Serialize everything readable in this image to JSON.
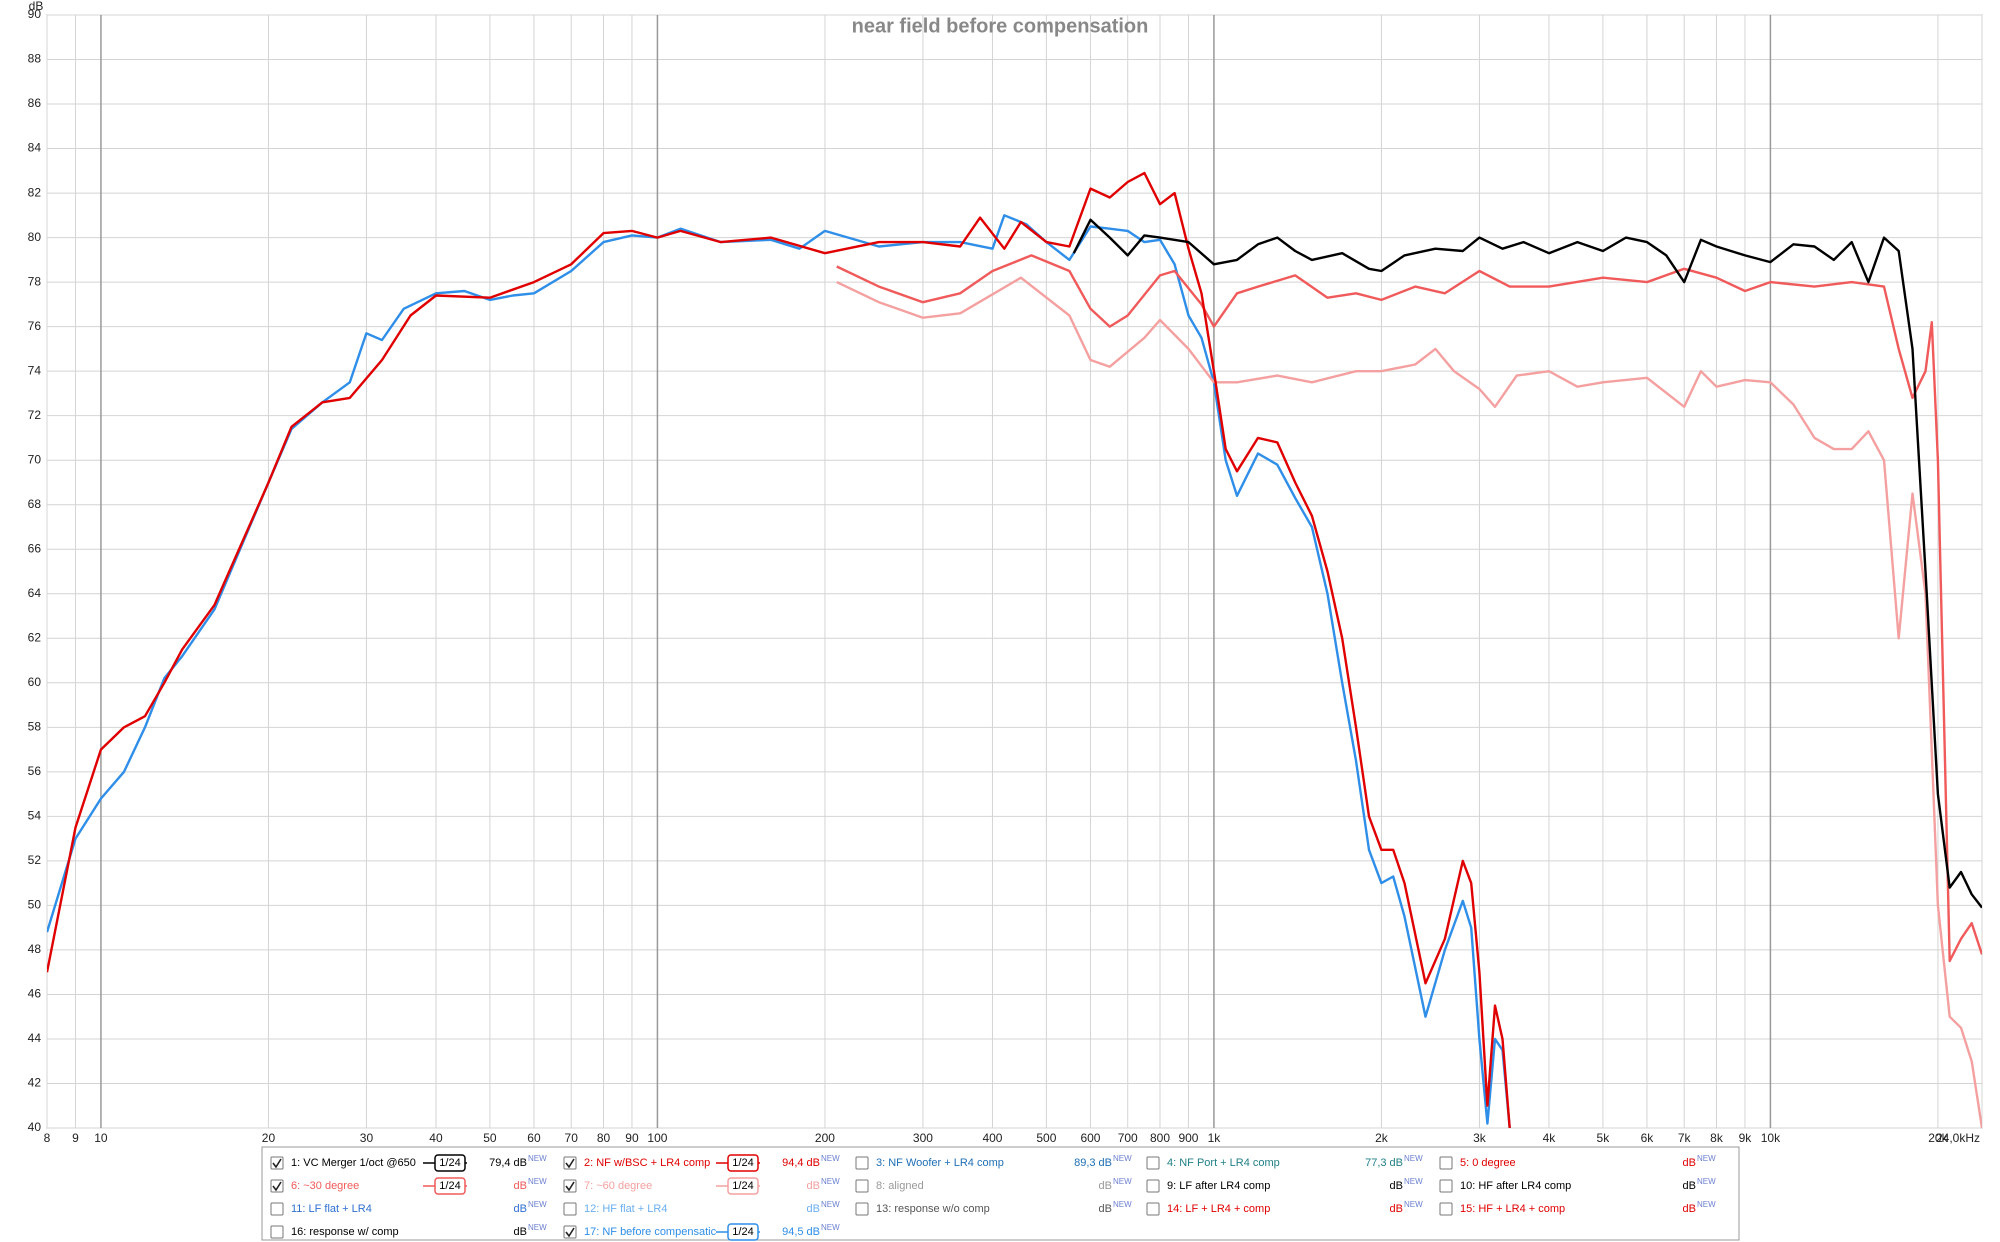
{
  "chart_data": {
    "type": "line",
    "title": "near field before compensation",
    "ylabel": "dB",
    "xscale": "log",
    "grid": true,
    "xlim": [
      8,
      24000
    ],
    "ylim": [
      40,
      90
    ],
    "yticks": [
      40,
      42,
      44,
      46,
      48,
      50,
      52,
      54,
      56,
      58,
      60,
      62,
      64,
      66,
      68,
      70,
      72,
      74,
      76,
      78,
      80,
      82,
      84,
      86,
      88,
      90
    ],
    "xticks": [
      8,
      9,
      10,
      20,
      30,
      40,
      50,
      60,
      70,
      80,
      90,
      100,
      200,
      300,
      400,
      500,
      600,
      700,
      800,
      900,
      {
        "value": 1000,
        "label": "1k"
      },
      {
        "value": 2000,
        "label": "2k"
      },
      {
        "value": 3000,
        "label": "3k"
      },
      {
        "value": 4000,
        "label": "4k"
      },
      {
        "value": 5000,
        "label": "5k"
      },
      {
        "value": 6000,
        "label": "6k"
      },
      {
        "value": 7000,
        "label": "7k"
      },
      {
        "value": 8000,
        "label": "8k"
      },
      {
        "value": 9000,
        "label": "9k"
      },
      {
        "value": 10000,
        "label": "10k"
      },
      {
        "value": 20000,
        "label": "20k"
      },
      {
        "value": 24000,
        "label": "24,0kHz"
      }
    ],
    "series": [
      {
        "name": "1: VC Merger 1/oct @650",
        "color": "#000000",
        "checked": true,
        "smoothing": "1/24",
        "level": "79,4 dB",
        "badge": "NEW",
        "x": [
          560,
          600,
          650,
          700,
          750,
          800,
          900,
          1000,
          1100,
          1200,
          1300,
          1400,
          1500,
          1700,
          1900,
          2000,
          2200,
          2500,
          2800,
          3000,
          3300,
          3600,
          4000,
          4500,
          5000,
          5500,
          6000,
          6500,
          7000,
          7500,
          8000,
          9000,
          10000,
          11000,
          12000,
          13000,
          14000,
          15000,
          16000,
          17000,
          18000,
          19000,
          20000,
          21000,
          22000,
          23000,
          24000
        ],
        "values": [
          79.3,
          80.8,
          80,
          79.2,
          80.1,
          80,
          79.8,
          78.8,
          79,
          79.7,
          80,
          79.4,
          79,
          79.3,
          78.6,
          78.5,
          79.2,
          79.5,
          79.4,
          80,
          79.5,
          79.8,
          79.3,
          79.8,
          79.4,
          80,
          79.8,
          79.2,
          78,
          79.9,
          79.6,
          79.2,
          78.9,
          79.7,
          79.6,
          79,
          79.8,
          78,
          80,
          79.4,
          75,
          65,
          55,
          50.8,
          51.5,
          50.5,
          49.9
        ]
      },
      {
        "name": "2: NF w/BSC + LR4 comp",
        "color": "#e00000",
        "checked": true,
        "smoothing": "1/24",
        "level": "94,4 dB",
        "badge": "NEW",
        "x": [
          8,
          9,
          10,
          11,
          12,
          13,
          14,
          16,
          20,
          22,
          25,
          28,
          32,
          36,
          40,
          50,
          60,
          70,
          80,
          90,
          100,
          110,
          130,
          160,
          200,
          250,
          300,
          350,
          380,
          420,
          450,
          500,
          550,
          600,
          650,
          700,
          750,
          800,
          850,
          900,
          950,
          1000,
          1050,
          1100,
          1200,
          1300,
          1400,
          1500,
          1600,
          1700,
          1800,
          1900,
          2000,
          2100,
          2200,
          2400,
          2600,
          2800,
          2900,
          3000,
          3100,
          3200,
          3300,
          3400
        ],
        "values": [
          47,
          53.5,
          57,
          58,
          58.5,
          60,
          61.5,
          63.5,
          69,
          71.5,
          72.6,
          72.8,
          74.5,
          76.5,
          77.4,
          77.3,
          78,
          78.8,
          80.2,
          80.3,
          80,
          80.3,
          79.8,
          80,
          79.3,
          79.8,
          79.8,
          79.6,
          80.9,
          79.5,
          80.7,
          79.8,
          79.6,
          82.2,
          81.8,
          82.5,
          82.9,
          81.5,
          82,
          79.5,
          77.5,
          74,
          70.5,
          69.5,
          71,
          70.8,
          69,
          67.5,
          65,
          62,
          58,
          54,
          52.5,
          52.5,
          51,
          46.5,
          48.5,
          52,
          51,
          47,
          41,
          45.5,
          44,
          40
        ]
      },
      {
        "name": "3: NF Woofer + LR4 comp",
        "color": "#1f6fb5",
        "checked": false,
        "level": "89,3 dB",
        "badge": "NEW"
      },
      {
        "name": "4: NF Port + LR4 comp",
        "color": "#1f7f85",
        "checked": false,
        "level": "77,3 dB",
        "badge": "NEW"
      },
      {
        "name": "5: 0 degree",
        "color": "#e00000",
        "checked": false,
        "level": "dB",
        "badge": "NEW"
      },
      {
        "name": "6: ~30 degree",
        "color": "#f05a5a",
        "checked": true,
        "smoothing": "1/24",
        "level": "dB",
        "badge": "NEW",
        "x": [
          210,
          250,
          300,
          350,
          400,
          470,
          550,
          600,
          650,
          700,
          800,
          850,
          950,
          1000,
          1100,
          1200,
          1400,
          1600,
          1800,
          2000,
          2300,
          2600,
          3000,
          3400,
          4000,
          5000,
          6000,
          7000,
          8000,
          9000,
          10000,
          12000,
          14000,
          16000,
          17000,
          18000,
          19000,
          19500,
          20000,
          21000,
          22000,
          23000,
          24000
        ],
        "values": [
          78.7,
          77.8,
          77.1,
          77.5,
          78.5,
          79.2,
          78.5,
          76.8,
          76,
          76.5,
          78.3,
          78.5,
          77,
          76,
          77.5,
          77.8,
          78.3,
          77.3,
          77.5,
          77.2,
          77.8,
          77.5,
          78.5,
          77.8,
          77.8,
          78.2,
          78,
          78.6,
          78.2,
          77.6,
          78,
          77.8,
          78,
          77.8,
          75,
          72.8,
          74,
          76.2,
          70,
          47.5,
          48.5,
          49.2,
          47.8
        ]
      },
      {
        "name": "7: ~60 degree",
        "color": "#f5a0a0",
        "checked": true,
        "smoothing": "1/24",
        "level": "dB",
        "badge": "NEW",
        "x": [
          210,
          250,
          300,
          350,
          450,
          550,
          600,
          650,
          750,
          800,
          900,
          1000,
          1100,
          1300,
          1500,
          1800,
          2000,
          2300,
          2500,
          2700,
          3000,
          3200,
          3500,
          4000,
          4500,
          5000,
          6000,
          7000,
          7500,
          8000,
          9000,
          10000,
          11000,
          12000,
          13000,
          14000,
          15000,
          16000,
          17000,
          18000,
          19000,
          20000,
          21000,
          22000,
          23000,
          24000
        ],
        "values": [
          78,
          77.1,
          76.4,
          76.6,
          78.2,
          76.5,
          74.5,
          74.2,
          75.5,
          76.3,
          75,
          73.5,
          73.5,
          73.8,
          73.5,
          74,
          74,
          74.3,
          75,
          74,
          73.2,
          72.4,
          73.8,
          74,
          73.3,
          73.5,
          73.7,
          72.4,
          74,
          73.3,
          73.6,
          73.5,
          72.5,
          71,
          70.5,
          70.5,
          71.3,
          70,
          62,
          68.5,
          64,
          50,
          45,
          44.5,
          43,
          40
        ]
      },
      {
        "name": "8: aligned",
        "color": "#999999",
        "checked": false,
        "level": "dB",
        "badge": "NEW"
      },
      {
        "name": "9: LF after LR4 comp",
        "color": "#000000",
        "checked": false,
        "level": "dB",
        "badge": "NEW"
      },
      {
        "name": "10: HF after LR4 comp",
        "color": "#000000",
        "checked": false,
        "level": "dB",
        "badge": "NEW"
      },
      {
        "name": "11: LF flat + LR4",
        "color": "#2e6fd0",
        "checked": false,
        "level": "dB",
        "badge": "NEW"
      },
      {
        "name": "12: HF flat + LR4",
        "color": "#6aaef0",
        "checked": false,
        "level": "dB",
        "badge": "NEW"
      },
      {
        "name": "13: response w/o comp",
        "color": "#555555",
        "checked": false,
        "level": "dB",
        "badge": "NEW"
      },
      {
        "name": "14: LF + LR4 + comp",
        "color": "#e00000",
        "checked": false,
        "level": "dB",
        "badge": "NEW"
      },
      {
        "name": "15: HF + LR4 + comp",
        "color": "#e00000",
        "checked": false,
        "level": "dB",
        "badge": "NEW"
      },
      {
        "name": "16: response w/ comp",
        "color": "#000000",
        "checked": false,
        "level": "dB",
        "badge": "NEW"
      },
      {
        "name": "17: NF before compensatic",
        "color": "#2e8ee8",
        "checked": true,
        "smoothing": "1/24",
        "level": "94,5 dB",
        "badge": "NEW",
        "x": [
          8,
          9,
          10,
          11,
          12,
          13,
          14,
          16,
          20,
          22,
          25,
          28,
          30,
          32,
          35,
          40,
          45,
          50,
          55,
          60,
          70,
          80,
          90,
          100,
          110,
          130,
          160,
          180,
          200,
          250,
          300,
          350,
          400,
          420,
          460,
          500,
          550,
          600,
          650,
          700,
          750,
          800,
          850,
          900,
          950,
          1000,
          1050,
          1100,
          1200,
          1300,
          1400,
          1500,
          1600,
          1700,
          1800,
          1900,
          2000,
          2100,
          2200,
          2400,
          2600,
          2800,
          2900,
          3000,
          3100,
          3200,
          3300,
          3400
        ],
        "values": [
          48.8,
          53,
          54.8,
          56,
          58,
          60.2,
          61.2,
          63.3,
          69,
          71.4,
          72.6,
          73.5,
          75.7,
          75.4,
          76.8,
          77.5,
          77.6,
          77.2,
          77.4,
          77.5,
          78.5,
          79.8,
          80.1,
          80,
          80.4,
          79.8,
          79.9,
          79.5,
          80.3,
          79.6,
          79.8,
          79.8,
          79.5,
          81,
          80.6,
          79.8,
          79,
          80.5,
          80.4,
          80.3,
          79.8,
          79.9,
          78.8,
          76.5,
          75.5,
          73.5,
          70,
          68.4,
          70.3,
          69.8,
          68.3,
          67,
          64,
          60,
          56.5,
          52.5,
          51,
          51.3,
          49.5,
          45,
          48,
          50.2,
          49,
          44,
          40.2,
          44,
          43.5,
          40
        ]
      }
    ]
  }
}
